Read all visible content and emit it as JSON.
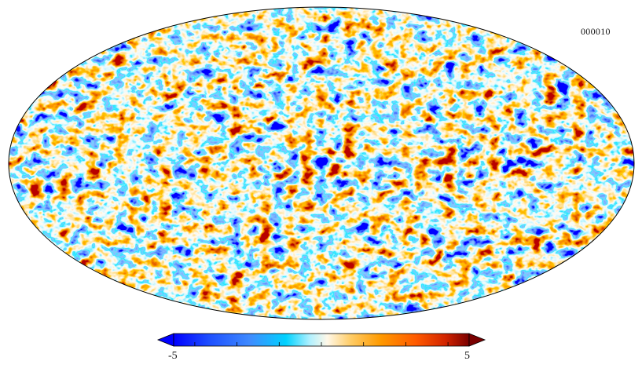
{
  "map": {
    "label": "000010",
    "projection": "mollweide",
    "colormap": [
      "#0000ff",
      "#1e4fff",
      "#3f8cff",
      "#00d2ff",
      "#aff0ff",
      "#fff8e8",
      "#ffcc66",
      "#ff9a00",
      "#ff5a00",
      "#d22400",
      "#7a0000"
    ]
  },
  "colorbar": {
    "min_label": "-5",
    "max_label": "5",
    "min_value": -5,
    "max_value": 5,
    "tick_count": 7
  }
}
